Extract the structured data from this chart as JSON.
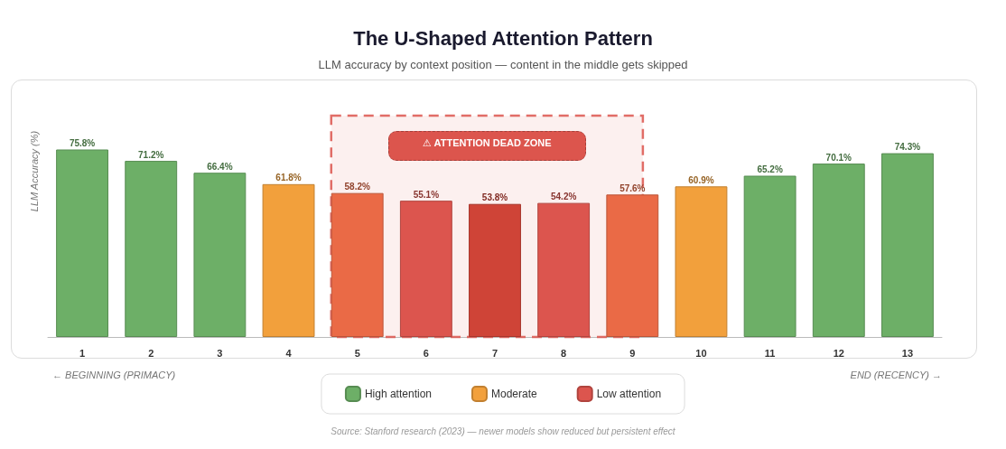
{
  "chart_data": {
    "type": "bar",
    "title": "The U-Shaped Attention Pattern",
    "subtitle": "LLM accuracy by context position — content in the middle gets skipped",
    "ylabel": "LLM Accuracy (%)",
    "categories": [
      "1",
      "2",
      "3",
      "4",
      "5",
      "6",
      "7",
      "8",
      "9",
      "10",
      "11",
      "12",
      "13"
    ],
    "stacked": true,
    "series": [
      {
        "name": "High attention",
        "color": "#6daf67",
        "values": [
          75.8,
          71.2,
          66.4,
          null,
          null,
          null,
          null,
          null,
          null,
          null,
          65.2,
          70.1,
          74.3
        ],
        "value_labels": [
          "75.8%",
          "71.2%",
          "66.4%",
          null,
          null,
          null,
          null,
          null,
          null,
          null,
          "65.2%",
          "70.1%",
          "74.3%"
        ]
      },
      {
        "name": "Moderate",
        "color": "#f2a03c",
        "values": [
          null,
          null,
          null,
          61.8,
          null,
          null,
          null,
          null,
          null,
          60.9,
          null,
          null,
          null
        ],
        "value_labels": [
          null,
          null,
          null,
          "61.8%",
          null,
          null,
          null,
          null,
          null,
          "60.9%",
          null,
          null,
          null
        ]
      },
      {
        "name": "Low attention",
        "color": "#dc554e",
        "colors": [
          null,
          null,
          null,
          null,
          "#ea6a46",
          "#dc554e",
          "#cf4437",
          "#dc554e",
          "#ea6a46",
          null,
          null,
          null,
          null
        ],
        "values": [
          null,
          null,
          null,
          null,
          58.2,
          55.1,
          53.8,
          54.2,
          57.6,
          null,
          null,
          null,
          null
        ],
        "value_labels": [
          null,
          null,
          null,
          null,
          "58.2%",
          "55.1%",
          "53.8%",
          "54.2%",
          "57.6%",
          null,
          null,
          null,
          null
        ]
      }
    ],
    "bands": [
      {
        "axis": "x",
        "from": "5",
        "to": "9",
        "label": "⚠ ATTENTION DEAD ZONE",
        "color": "#dc554e"
      }
    ],
    "legend": "bottom",
    "annotations": [
      "← BEGINNING (PRIMACY)",
      "END (RECENCY) →",
      "Source: Stanford research (2023) — newer models show reduced but persistent effect"
    ]
  }
}
